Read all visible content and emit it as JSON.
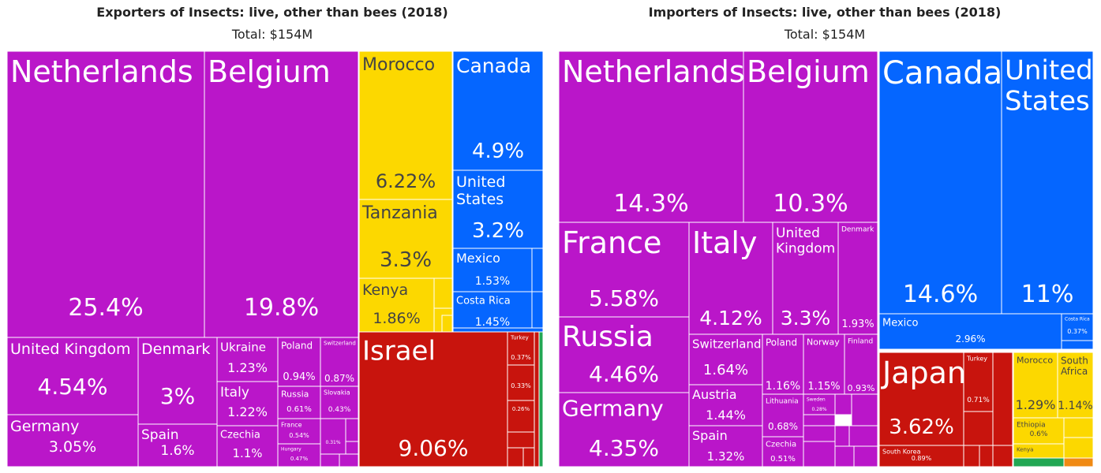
{
  "colors": {
    "europe": "#BA16C9",
    "africa": "#FCD800",
    "north_america": "#0566FF",
    "asia": "#C8140D",
    "south_america": "#22A753",
    "oceania": "#F08A13"
  },
  "chart_data": [
    {
      "type": "treemap",
      "title": "Exporters of Insects: live, other than bees (2018)",
      "subtitle": "Total: $154M",
      "items": [
        {
          "name": "Netherlands",
          "value": 25.4,
          "label": "25.4%",
          "region": "europe"
        },
        {
          "name": "Belgium",
          "value": 19.8,
          "label": "19.8%",
          "region": "europe"
        },
        {
          "name": "United Kingdom",
          "value": 4.54,
          "label": "4.54%",
          "region": "europe"
        },
        {
          "name": "Germany",
          "value": 3.05,
          "label": "3.05%",
          "region": "europe"
        },
        {
          "name": "Denmark",
          "value": 3.0,
          "label": "3%",
          "region": "europe"
        },
        {
          "name": "Spain",
          "value": 1.6,
          "label": "1.6%",
          "region": "europe"
        },
        {
          "name": "Ukraine",
          "value": 1.23,
          "label": "1.23%",
          "region": "europe"
        },
        {
          "name": "Italy",
          "value": 1.22,
          "label": "1.22%",
          "region": "europe"
        },
        {
          "name": "Czechia",
          "value": 1.1,
          "label": "1.1%",
          "region": "europe"
        },
        {
          "name": "Poland",
          "value": 0.94,
          "label": "0.94%",
          "region": "europe"
        },
        {
          "name": "Switzerland",
          "value": 0.87,
          "label": "0.87%",
          "region": "europe"
        },
        {
          "name": "Russia",
          "value": 0.61,
          "label": "0.61%",
          "region": "europe"
        },
        {
          "name": "Slovakia",
          "value": 0.43,
          "label": "0.43%",
          "region": "europe"
        },
        {
          "name": "France",
          "value": 0.54,
          "label": "0.54%",
          "region": "europe"
        },
        {
          "name": "Hungary",
          "value": 0.47,
          "label": "0.47%",
          "region": "europe"
        },
        {
          "name": "",
          "value": 0.31,
          "label": "0.31%",
          "region": "europe"
        },
        {
          "name": "Morocco",
          "value": 6.22,
          "label": "6.22%",
          "region": "africa"
        },
        {
          "name": "Tanzania",
          "value": 3.3,
          "label": "3.3%",
          "region": "africa"
        },
        {
          "name": "Kenya",
          "value": 1.86,
          "label": "1.86%",
          "region": "africa"
        },
        {
          "name": "Canada",
          "value": 4.9,
          "label": "4.9%",
          "region": "north_america"
        },
        {
          "name": "United States",
          "value": 3.2,
          "label": "3.2%",
          "region": "north_america"
        },
        {
          "name": "Mexico",
          "value": 1.53,
          "label": "1.53%",
          "region": "north_america"
        },
        {
          "name": "Costa Rica",
          "value": 1.45,
          "label": "1.45%",
          "region": "north_america"
        },
        {
          "name": "Israel",
          "value": 9.06,
          "label": "9.06%",
          "region": "asia"
        },
        {
          "name": "Turkey",
          "value": 0.37,
          "label": "0.37%",
          "region": "asia"
        },
        {
          "name": "",
          "value": 0.33,
          "label": "0.33%",
          "region": "asia"
        },
        {
          "name": "",
          "value": 0.26,
          "label": "0.26%",
          "region": "asia"
        }
      ]
    },
    {
      "type": "treemap",
      "title": "Importers of Insects: live, other than bees (2018)",
      "subtitle": "Total: $154M",
      "items": [
        {
          "name": "Netherlands",
          "value": 14.3,
          "label": "14.3%",
          "region": "europe"
        },
        {
          "name": "Belgium",
          "value": 10.3,
          "label": "10.3%",
          "region": "europe"
        },
        {
          "name": "France",
          "value": 5.58,
          "label": "5.58%",
          "region": "europe"
        },
        {
          "name": "Russia",
          "value": 4.46,
          "label": "4.46%",
          "region": "europe"
        },
        {
          "name": "Germany",
          "value": 4.35,
          "label": "4.35%",
          "region": "europe"
        },
        {
          "name": "Italy",
          "value": 4.12,
          "label": "4.12%",
          "region": "europe"
        },
        {
          "name": "United Kingdom",
          "value": 3.3,
          "label": "3.3%",
          "region": "europe"
        },
        {
          "name": "Denmark",
          "value": 1.93,
          "label": "1.93%",
          "region": "europe"
        },
        {
          "name": "Switzerland",
          "value": 1.64,
          "label": "1.64%",
          "region": "europe"
        },
        {
          "name": "Austria",
          "value": 1.44,
          "label": "1.44%",
          "region": "europe"
        },
        {
          "name": "Spain",
          "value": 1.32,
          "label": "1.32%",
          "region": "europe"
        },
        {
          "name": "Poland",
          "value": 1.16,
          "label": "1.16%",
          "region": "europe"
        },
        {
          "name": "Norway",
          "value": 1.15,
          "label": "1.15%",
          "region": "europe"
        },
        {
          "name": "Finland",
          "value": 0.93,
          "label": "0.93%",
          "region": "europe"
        },
        {
          "name": "Lithuania",
          "value": 0.68,
          "label": "0.68%",
          "region": "europe"
        },
        {
          "name": "Sweden",
          "value": 0.28,
          "label": "0.28%",
          "region": "europe"
        },
        {
          "name": "Czechia",
          "value": 0.51,
          "label": "0.51%",
          "region": "europe"
        },
        {
          "name": "Canada",
          "value": 14.6,
          "label": "14.6%",
          "region": "north_america"
        },
        {
          "name": "United States",
          "value": 11.0,
          "label": "11%",
          "region": "north_america"
        },
        {
          "name": "Mexico",
          "value": 2.96,
          "label": "2.96%",
          "region": "north_america"
        },
        {
          "name": "Costa Rica",
          "value": 0.37,
          "label": "0.37%",
          "region": "north_america"
        },
        {
          "name": "Japan",
          "value": 3.62,
          "label": "3.62%",
          "region": "asia"
        },
        {
          "name": "Turkey",
          "value": 0.71,
          "label": "0.71%",
          "region": "asia"
        },
        {
          "name": "South Korea",
          "value": 0.89,
          "label": "0.89%",
          "region": "asia"
        },
        {
          "name": "Morocco",
          "value": 1.29,
          "label": "1.29%",
          "region": "africa"
        },
        {
          "name": "South Africa",
          "value": 1.14,
          "label": "1.14%",
          "region": "africa"
        },
        {
          "name": "Ethiopia",
          "value": 0.6,
          "label": "0.6%",
          "region": "africa"
        },
        {
          "name": "Kenya",
          "value": null,
          "label": "",
          "region": "africa"
        }
      ]
    }
  ]
}
